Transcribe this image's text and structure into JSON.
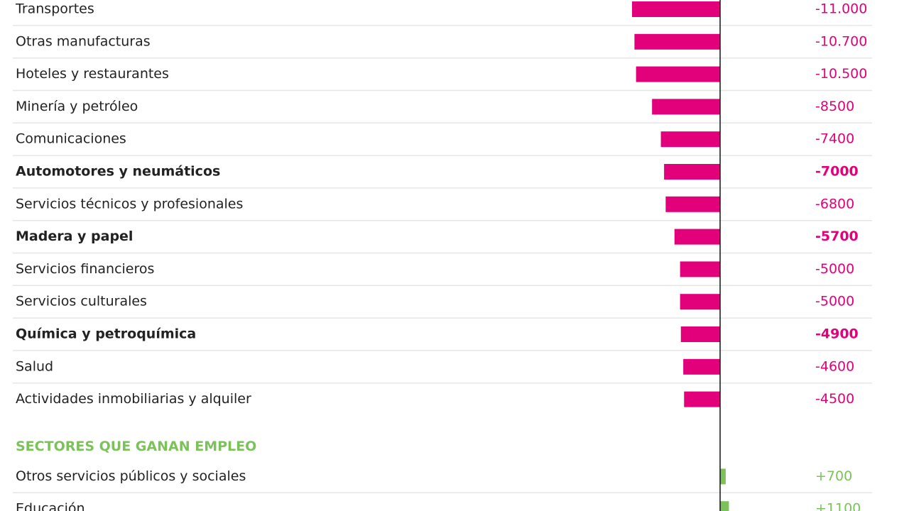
{
  "chart_data": {
    "type": "bar",
    "orientation": "horizontal",
    "groups": [
      {
        "color": "#e3007b",
        "categories": [
          "Transportes",
          "Otras manufacturas",
          "Hoteles y restaurantes",
          "Minería y petróleo",
          "Comunicaciones",
          "Automotores y neumáticos",
          "Servicios técnicos y profesionales",
          "Madera y papel",
          "Servicios financieros",
          "Servicios culturales",
          "Química y petroquímica",
          "Salud",
          "Actividades inmobiliarias y alquiler"
        ],
        "values": [
          -11000,
          -10700,
          -10500,
          -8500,
          -7400,
          -7000,
          -6800,
          -5700,
          -5000,
          -5000,
          -4900,
          -4600,
          -4500
        ],
        "value_labels": [
          "-11.000",
          "-10.700",
          "-10.500",
          "-8500",
          "-7400",
          "-7000",
          "-6800",
          "-5700",
          "-5000",
          "-5000",
          "-4900",
          "-4600",
          "-4500"
        ],
        "bold": [
          false,
          false,
          false,
          false,
          false,
          true,
          false,
          true,
          false,
          false,
          true,
          false,
          false
        ]
      },
      {
        "title": "SECTORES QUE GANAN EMPLEO",
        "color": "#7cc15a",
        "categories": [
          "Otros servicios públicos y sociales",
          "Educación"
        ],
        "values": [
          700,
          1100
        ],
        "value_labels": [
          "+700",
          "+1100"
        ],
        "bold": [
          false,
          false
        ]
      }
    ]
  }
}
